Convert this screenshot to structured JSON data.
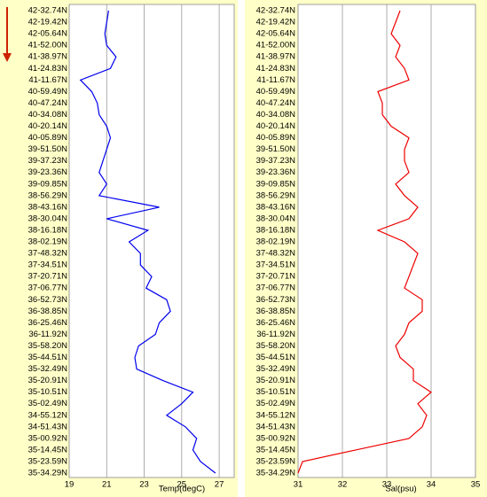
{
  "chart_data": [
    {
      "type": "line",
      "orientation": "vertical",
      "xlabel": "Temp(degC)",
      "color": "#0000ee",
      "grid": true,
      "xlim": [
        19,
        27.8
      ],
      "xticks": [
        19,
        21,
        23,
        25,
        27
      ],
      "categories": [
        "42-32.74N",
        "42-19.42N",
        "42-05.64N",
        "41-52.00N",
        "41-38.97N",
        "41-24.83N",
        "41-11.67N",
        "40-59.49N",
        "40-47.24N",
        "40-34.08N",
        "40-20.14N",
        "40-05.89N",
        "39-51.50N",
        "39-37.23N",
        "39-23.36N",
        "39-09.85N",
        "38-56.29N",
        "38-43.16N",
        "38-30.04N",
        "38-16.18N",
        "38-02.19N",
        "37-48.32N",
        "37-34.51N",
        "37-20.71N",
        "37-06.77N",
        "36-52.73N",
        "36-38.85N",
        "36-25.46N",
        "36-11.92N",
        "35-58.20N",
        "35-44.51N",
        "35-32.49N",
        "35-20.91N",
        "35-10.51N",
        "35-02.49N",
        "34-55.12N",
        "34-51.43N",
        "35-00.92N",
        "35-14.45N",
        "35-23.59N",
        "35-34.29N"
      ],
      "values": [
        21.1,
        21.0,
        20.9,
        21.0,
        21.5,
        21.2,
        19.6,
        20.2,
        20.5,
        20.6,
        21.0,
        21.2,
        21.0,
        20.8,
        20.6,
        21.0,
        20.6,
        23.8,
        21.0,
        23.2,
        22.2,
        22.8,
        22.8,
        23.4,
        23.1,
        24.2,
        24.4,
        23.8,
        23.6,
        22.7,
        22.5,
        22.6,
        24.0,
        25.6,
        25.0,
        24.2,
        25.2,
        25.8,
        25.6,
        26.0,
        26.8
      ]
    },
    {
      "type": "line",
      "orientation": "vertical",
      "xlabel": "Sal(psu)",
      "color": "#ee0000",
      "grid": true,
      "xlim": [
        31,
        35
      ],
      "xticks": [
        31,
        32,
        33,
        34,
        35
      ],
      "categories": [
        "42-32.74N",
        "42-19.42N",
        "42-05.64N",
        "41-52.00N",
        "41-38.97N",
        "41-24.83N",
        "41-11.67N",
        "40-59.49N",
        "40-47.24N",
        "40-34.08N",
        "40-20.14N",
        "40-05.89N",
        "39-51.50N",
        "39-37.23N",
        "39-23.36N",
        "39-09.85N",
        "38-56.29N",
        "38-43.16N",
        "38-30.04N",
        "38-16.18N",
        "38-02.19N",
        "37-48.32N",
        "37-34.51N",
        "37-20.71N",
        "37-06.77N",
        "36-52.73N",
        "36-38.85N",
        "36-25.46N",
        "36-11.92N",
        "35-58.20N",
        "35-44.51N",
        "35-32.49N",
        "35-20.91N",
        "35-10.51N",
        "35-02.49N",
        "34-55.12N",
        "34-51.43N",
        "35-00.92N",
        "35-14.45N",
        "35-23.59N",
        "35-34.29N"
      ],
      "values": [
        33.3,
        33.2,
        33.1,
        33.3,
        33.2,
        33.4,
        33.5,
        32.8,
        32.9,
        32.9,
        33.1,
        33.5,
        33.4,
        33.4,
        33.5,
        33.2,
        33.4,
        33.7,
        33.5,
        32.8,
        33.4,
        33.7,
        33.6,
        33.5,
        33.4,
        33.8,
        33.8,
        33.5,
        33.4,
        33.2,
        33.3,
        33.6,
        33.6,
        34.0,
        33.7,
        33.9,
        33.8,
        33.5,
        32.3,
        31.1,
        31.0
      ]
    }
  ]
}
